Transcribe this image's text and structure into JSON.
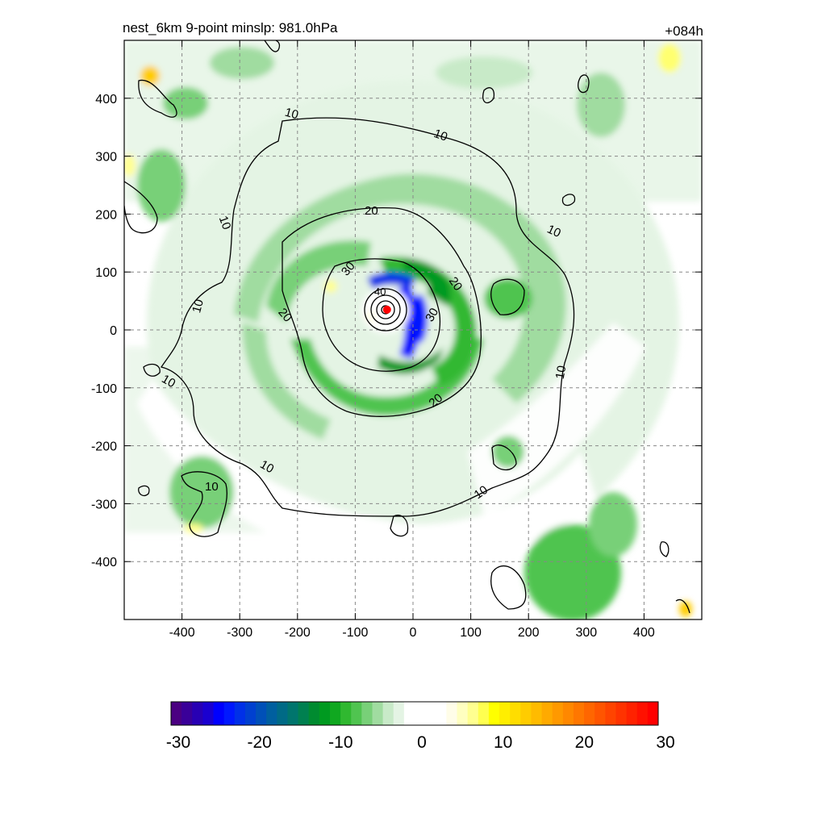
{
  "chart_data": {
    "type": "heatmap",
    "title_left": "nest_6km  9-point minslp: 981.0hPa",
    "title_right": "+084h",
    "xlim": [
      -500,
      500
    ],
    "ylim": [
      -500,
      500
    ],
    "x_ticks": [
      -400,
      -300,
      -200,
      -100,
      0,
      100,
      200,
      300,
      400
    ],
    "y_ticks": [
      400,
      300,
      200,
      100,
      0,
      -100,
      -200,
      -300,
      -400
    ],
    "grid": true,
    "center_marker": {
      "x": -45,
      "y": 35,
      "color": "#ff0000"
    },
    "contours": [
      {
        "level": 10,
        "label": "10"
      },
      {
        "level": 20,
        "label": "20"
      },
      {
        "level": 30,
        "label": "30"
      },
      {
        "level": 40,
        "label": "40"
      }
    ],
    "colorbar": {
      "range": [
        -30,
        30
      ],
      "tick_labels": [
        "-30",
        "-20",
        "-10",
        "0",
        "10",
        "20",
        "30"
      ],
      "colors": [
        "#4b0082",
        "#3a0099",
        "#2800b4",
        "#1a00d0",
        "#0000ff",
        "#0018ff",
        "#0030e8",
        "#0040d0",
        "#0050b8",
        "#005f9f",
        "#006a86",
        "#00756d",
        "#008050",
        "#008b30",
        "#009a20",
        "#10a820",
        "#30b830",
        "#50c450",
        "#78d078",
        "#a0dca0",
        "#c8eac8",
        "#e4f4e4",
        "#ffffff",
        "#ffffff",
        "#ffffff",
        "#ffffff",
        "#fffde8",
        "#ffffc0",
        "#ffff90",
        "#ffff50",
        "#ffff00",
        "#ffee00",
        "#ffdd00",
        "#ffcc00",
        "#ffbb00",
        "#ffaa00",
        "#ff9900",
        "#ff8800",
        "#ff7700",
        "#ff6600",
        "#ff5500",
        "#ff4400",
        "#ff3300",
        "#ff2200",
        "#ff1100",
        "#ff0000"
      ]
    }
  }
}
